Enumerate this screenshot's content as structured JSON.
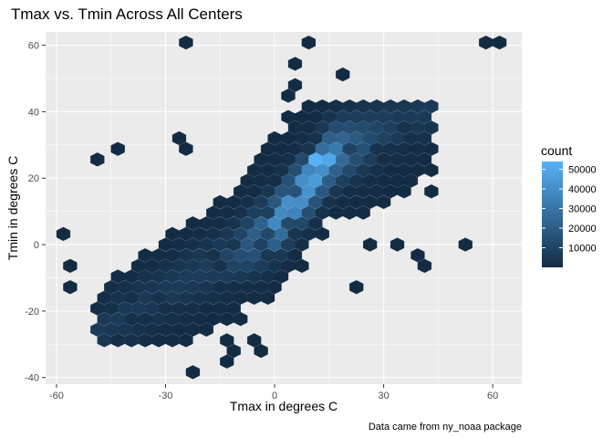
{
  "chart_data": {
    "type": "hexbin",
    "title": "Tmax vs. Tmin Across All Centers",
    "xlabel": "Tmax in degrees C",
    "ylabel": "Tmin in degrees C",
    "caption": "Data came from ny_noaa package",
    "xlim": [
      -63,
      68
    ],
    "ylim": [
      -42,
      64
    ],
    "x_ticks": [
      -60,
      -30,
      0,
      30,
      60
    ],
    "y_ticks": [
      -40,
      -20,
      0,
      20,
      40,
      60
    ],
    "grid": true,
    "legend": {
      "title": "count",
      "position": "right",
      "ticks": [
        10000,
        20000,
        30000,
        40000,
        50000
      ],
      "range": [
        1,
        54000
      ],
      "low_color": "#132B43",
      "high_color": "#56B1F7"
    },
    "colors": {
      "panel_background": "#EBEBEB",
      "grid_major": "#FFFFFF",
      "hex_low": "#132B43",
      "hex_high": "#56B1F7"
    },
    "outliers": [
      {
        "x": -58,
        "y": 3,
        "count": 1
      },
      {
        "x": -58,
        "y": -8,
        "count": 1
      },
      {
        "x": -58,
        "y": -14,
        "count": 1
      },
      {
        "x": -49,
        "y": 26,
        "count": 1
      },
      {
        "x": -44,
        "y": 29,
        "count": 1
      },
      {
        "x": -26,
        "y": 29,
        "count": 1
      },
      {
        "x": -25,
        "y": 60,
        "count": 1
      },
      {
        "x": -25,
        "y": 32,
        "count": 1
      },
      {
        "x": -24,
        "y": -40,
        "count": 1
      },
      {
        "x": -12,
        "y": -34,
        "count": 1
      },
      {
        "x": -10,
        "y": -31,
        "count": 1
      },
      {
        "x": -5,
        "y": -31,
        "count": 1
      },
      {
        "x": 4,
        "y": 54,
        "count": 1
      },
      {
        "x": 4,
        "y": 49,
        "count": 1
      },
      {
        "x": 4,
        "y": 44,
        "count": 1
      },
      {
        "x": 10,
        "y": 60,
        "count": 1
      },
      {
        "x": 20,
        "y": 52,
        "count": 1
      },
      {
        "x": 57,
        "y": 60,
        "count": 1
      },
      {
        "x": 61,
        "y": 60,
        "count": 1
      },
      {
        "x": 52,
        "y": 0,
        "count": 1
      },
      {
        "x": 40,
        "y": -5,
        "count": 1
      },
      {
        "x": 38,
        "y": -2,
        "count": 1
      },
      {
        "x": 33,
        "y": 0,
        "count": 1
      },
      {
        "x": 28,
        "y": 0,
        "count": 1
      },
      {
        "x": 22,
        "y": -14,
        "count": 1
      },
      {
        "x": -6,
        "y": -28,
        "count": 1
      },
      {
        "x": -12,
        "y": -28,
        "count": 1
      },
      {
        "x": 44,
        "y": 15,
        "count": 1
      },
      {
        "x": 35,
        "y": 25,
        "count": 1
      }
    ],
    "density_ridge": [
      {
        "x": -20,
        "y": -8
      },
      {
        "x": -10,
        "y": -2
      },
      {
        "x": 0,
        "y": 6
      },
      {
        "x": 6,
        "y": 14
      },
      {
        "x": 12,
        "y": 22
      },
      {
        "x": 16,
        "y": 27
      },
      {
        "x": 22,
        "y": 30
      }
    ],
    "peak_counts": [
      {
        "x": 13,
        "y": 24,
        "count": 54000
      },
      {
        "x": 15,
        "y": 26,
        "count": 50000
      },
      {
        "x": 10,
        "y": 20,
        "count": 45000
      },
      {
        "x": 0,
        "y": 6,
        "count": 38000
      }
    ]
  }
}
